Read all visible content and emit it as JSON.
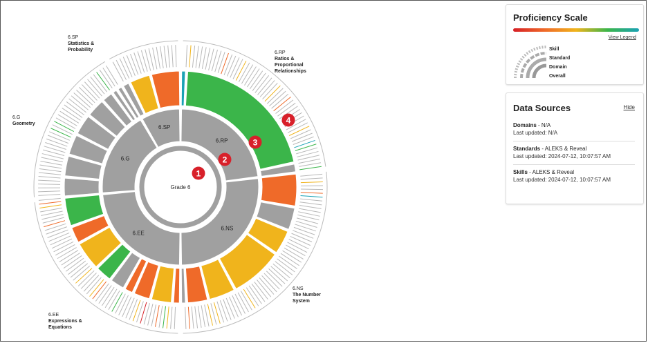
{
  "domains": [
    {
      "code": "6.SP",
      "name": "Statistics & Probability"
    },
    {
      "code": "6.RP",
      "name": "Ratios & Proportional Relationships"
    },
    {
      "code": "6.G",
      "name": "Geometry"
    },
    {
      "code": "6.EE",
      "name": "Expressions & Equations"
    },
    {
      "code": "6.NS",
      "name": "The Number System"
    }
  ],
  "center_label": "Grade 6",
  "callouts": [
    "1",
    "2",
    "3",
    "4"
  ],
  "proficiency": {
    "title": "Proficiency Scale",
    "view_legend": "View Legend",
    "levels": [
      "Skill",
      "Standard",
      "Domain",
      "Overall"
    ]
  },
  "data_sources": {
    "title": "Data Sources",
    "hide": "Hide",
    "items": [
      {
        "label": "Domains",
        "value": "N/A",
        "updated": "Last updated: N/A"
      },
      {
        "label": "Standards",
        "value": "ALEKS & Reveal",
        "updated": "Last updated: 2024-07-12, 10:07:57 AM"
      },
      {
        "label": "Skills",
        "value": "ALEKS & Reveal",
        "updated": "Last updated: 2024-07-12, 10:07:57 AM"
      }
    ]
  },
  "colors": {
    "gray": "#a0a0a0",
    "red": "#d61f26",
    "orange": "#ef6a29",
    "yellow": "#f0b41c",
    "green": "#3bb54a",
    "teal": "#1aa2b5"
  }
}
